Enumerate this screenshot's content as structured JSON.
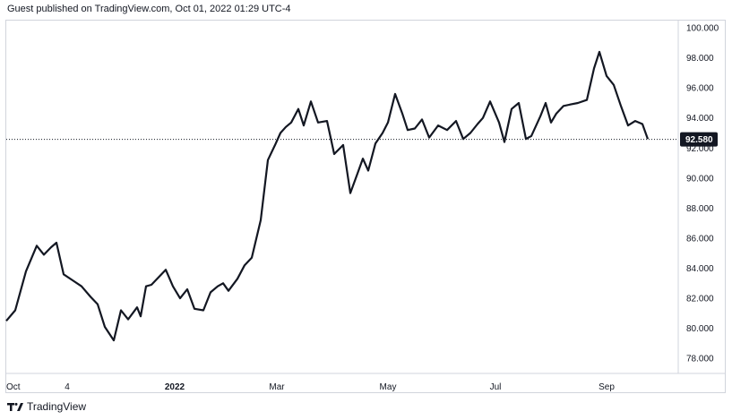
{
  "caption": "Guest published on TradingView.com, Oct 01, 2022 01:29 UTC-4",
  "brand": "TradingView",
  "colors": {
    "line": "#131722",
    "grid": "#d1d4dc",
    "label_bg": "#131722",
    "label_fg": "#ffffff"
  },
  "chart_data": {
    "type": "line",
    "title": "",
    "xlabel": "",
    "ylabel": "",
    "ylim": [
      77.0,
      100.6
    ],
    "yticks": [
      "78.000",
      "80.000",
      "82.000",
      "84.000",
      "86.000",
      "88.000",
      "90.000",
      "92.000",
      "94.000",
      "96.000",
      "98.000",
      "100.000"
    ],
    "xticks": [
      {
        "label": "Oct",
        "x": "2021-10-01",
        "bold": false
      },
      {
        "label": "4",
        "x": "2021-11-04",
        "bold": false
      },
      {
        "label": "2022",
        "x": "2022-01-03",
        "bold": true
      },
      {
        "label": "Mar",
        "x": "2022-03-01",
        "bold": false
      },
      {
        "label": "May",
        "x": "2022-05-02",
        "bold": false
      },
      {
        "label": "Jul",
        "x": "2022-07-01",
        "bold": false
      },
      {
        "label": "Sep",
        "x": "2022-09-01",
        "bold": false
      }
    ],
    "xlim": [
      "2021-10-01",
      "2022-10-11"
    ],
    "last_price": 92.58,
    "last_price_label": "92.580",
    "series": [
      {
        "x": [
          "2021-10-01",
          "2021-10-06",
          "2021-10-12",
          "2021-10-18",
          "2021-10-22",
          "2021-10-26",
          "2021-10-29",
          "2021-11-02",
          "2021-11-07",
          "2021-11-12",
          "2021-11-17",
          "2021-11-21",
          "2021-11-25",
          "2021-11-30",
          "2021-12-04",
          "2021-12-08",
          "2021-12-13",
          "2021-12-15",
          "2021-12-18",
          "2021-12-21",
          "2021-12-25",
          "2021-12-29",
          "2022-01-02",
          "2022-01-06",
          "2022-01-10",
          "2022-01-14",
          "2022-01-19",
          "2022-01-23",
          "2022-01-27",
          "2022-01-30",
          "2022-02-02",
          "2022-02-07",
          "2022-02-11",
          "2022-02-15",
          "2022-02-20",
          "2022-02-24",
          "2022-02-28",
          "2022-03-03",
          "2022-03-06",
          "2022-03-09",
          "2022-03-13",
          "2022-03-16",
          "2022-03-20",
          "2022-03-24",
          "2022-03-29",
          "2022-04-02",
          "2022-04-07",
          "2022-04-11",
          "2022-04-15",
          "2022-04-18",
          "2022-04-21",
          "2022-04-25",
          "2022-04-29",
          "2022-05-02",
          "2022-05-06",
          "2022-05-10",
          "2022-05-13",
          "2022-05-17",
          "2022-05-21",
          "2022-05-25",
          "2022-05-30",
          "2022-06-04",
          "2022-06-09",
          "2022-06-13",
          "2022-06-17",
          "2022-06-21",
          "2022-06-24",
          "2022-06-28",
          "2022-07-03",
          "2022-07-06",
          "2022-07-10",
          "2022-07-14",
          "2022-07-18",
          "2022-07-21",
          "2022-07-26",
          "2022-07-29",
          "2022-08-01",
          "2022-08-04",
          "2022-08-08",
          "2022-08-12",
          "2022-08-16",
          "2022-08-21",
          "2022-08-25",
          "2022-08-28",
          "2022-09-01",
          "2022-09-05",
          "2022-09-09",
          "2022-09-13",
          "2022-09-17",
          "2022-09-21",
          "2022-09-24"
        ],
        "values": [
          80.5,
          81.2,
          83.8,
          85.5,
          84.9,
          85.4,
          85.7,
          83.6,
          83.2,
          82.8,
          82.1,
          81.6,
          80.1,
          79.2,
          81.2,
          80.6,
          81.4,
          80.8,
          82.8,
          82.9,
          83.4,
          83.9,
          82.8,
          82.0,
          82.6,
          81.3,
          81.2,
          82.4,
          82.8,
          83.0,
          82.5,
          83.3,
          84.2,
          84.7,
          87.2,
          91.2,
          92.2,
          93.0,
          93.4,
          93.7,
          94.6,
          93.5,
          95.1,
          93.7,
          93.8,
          91.6,
          92.2,
          89.0,
          90.3,
          91.3,
          90.5,
          92.3,
          93.0,
          93.7,
          95.6,
          94.3,
          93.2,
          93.3,
          93.9,
          92.7,
          93.5,
          93.2,
          93.8,
          92.6,
          93.0,
          93.6,
          94.0,
          95.1,
          93.7,
          92.4,
          94.6,
          95.0,
          92.6,
          92.8,
          94.1,
          95.0,
          93.7,
          94.3,
          94.8,
          94.9,
          95.0,
          95.2,
          97.3,
          98.4,
          96.8,
          96.2,
          94.8,
          93.5,
          93.8,
          93.6,
          92.6
        ]
      }
    ]
  }
}
